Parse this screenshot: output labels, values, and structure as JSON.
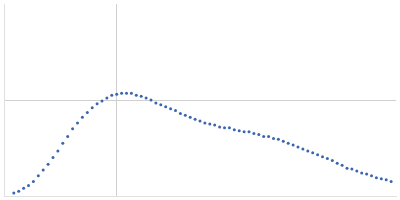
{
  "chart_data": {
    "type": "scatter",
    "color": "#3a66b0",
    "marker": "circle",
    "grid": true,
    "tick_labels": false,
    "xlim": [
      0,
      4
    ],
    "ylim": [
      0,
      2
    ],
    "xticks": [
      1.15
    ],
    "yticks": [
      1.0
    ],
    "x": [
      0.1,
      0.15,
      0.2,
      0.25,
      0.3,
      0.35,
      0.4,
      0.45,
      0.5,
      0.55,
      0.6,
      0.65,
      0.7,
      0.75,
      0.8,
      0.85,
      0.9,
      0.95,
      1.0,
      1.05,
      1.1,
      1.15,
      1.2,
      1.25,
      1.3,
      1.35,
      1.4,
      1.45,
      1.5,
      1.55,
      1.6,
      1.65,
      1.7,
      1.75,
      1.8,
      1.85,
      1.9,
      1.95,
      2.0,
      2.05,
      2.1,
      2.15,
      2.2,
      2.25,
      2.3,
      2.35,
      2.4,
      2.45,
      2.5,
      2.55,
      2.6,
      2.65,
      2.7,
      2.75,
      2.8,
      2.85,
      2.9,
      2.95,
      3.0,
      3.05,
      3.1,
      3.15,
      3.2,
      3.25,
      3.3,
      3.35,
      3.4,
      3.45,
      3.5,
      3.55,
      3.6,
      3.65,
      3.7,
      3.75,
      3.8,
      3.85,
      3.9,
      3.95
    ],
    "values": [
      0.03,
      0.05,
      0.08,
      0.11,
      0.15,
      0.21,
      0.27,
      0.33,
      0.4,
      0.47,
      0.55,
      0.62,
      0.7,
      0.76,
      0.82,
      0.87,
      0.92,
      0.96,
      0.99,
      1.02,
      1.05,
      1.06,
      1.07,
      1.07,
      1.07,
      1.05,
      1.04,
      1.02,
      1.0,
      0.97,
      0.95,
      0.93,
      0.91,
      0.89,
      0.86,
      0.84,
      0.82,
      0.8,
      0.78,
      0.76,
      0.75,
      0.74,
      0.72,
      0.71,
      0.71,
      0.69,
      0.68,
      0.67,
      0.67,
      0.65,
      0.64,
      0.62,
      0.62,
      0.6,
      0.59,
      0.57,
      0.55,
      0.53,
      0.51,
      0.49,
      0.47,
      0.45,
      0.43,
      0.41,
      0.39,
      0.37,
      0.34,
      0.32,
      0.29,
      0.28,
      0.26,
      0.24,
      0.23,
      0.21,
      0.19,
      0.18,
      0.17,
      0.15
    ]
  }
}
